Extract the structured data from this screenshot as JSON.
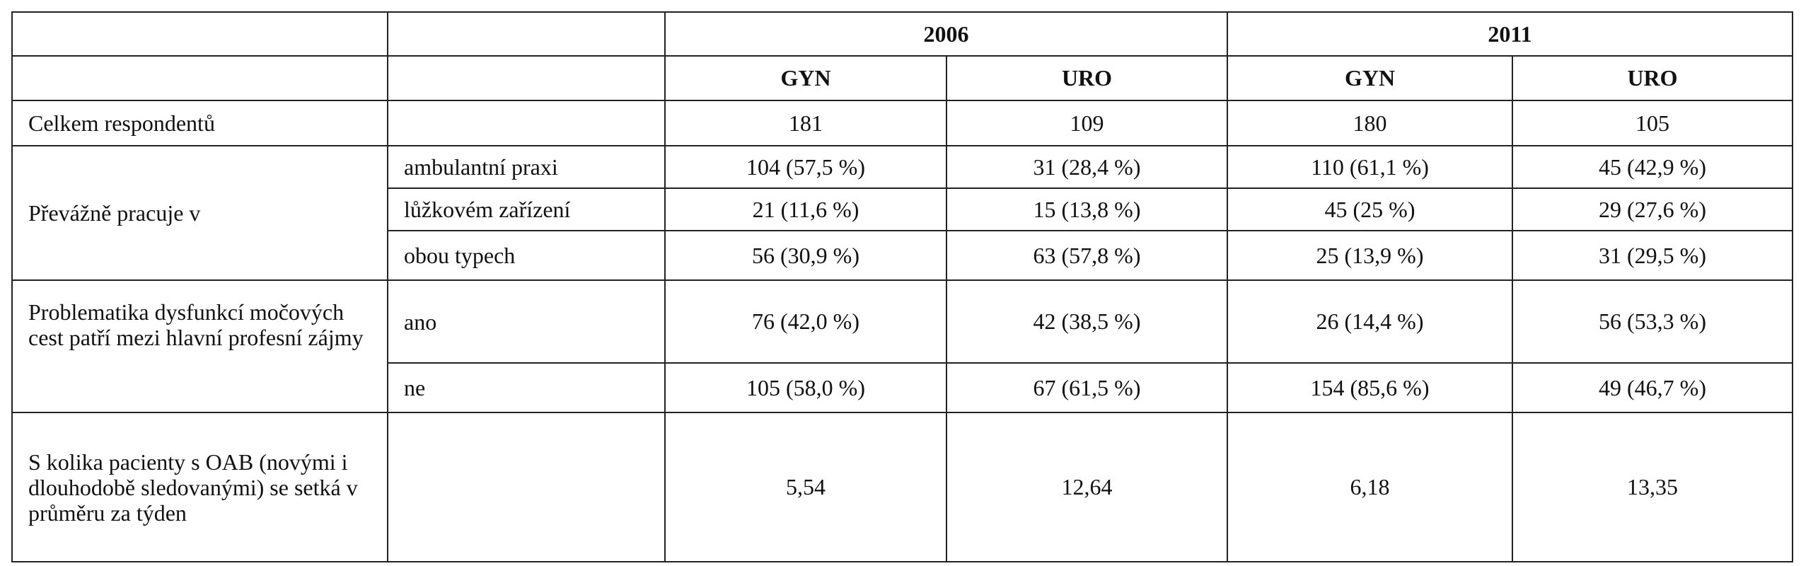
{
  "table": {
    "years": [
      "2006",
      "2011"
    ],
    "groups": [
      "GYN",
      "URO",
      "GYN",
      "URO"
    ],
    "rows": [
      {
        "label": "Celkem respondentů",
        "cells": [
          "181",
          "109",
          "180",
          "105"
        ]
      },
      {
        "label": "Převážně pracuje v",
        "sub": [
          {
            "label": "ambulantní praxi",
            "cells": [
              "104 (57,5 %)",
              "31 (28,4 %)",
              "110 (61,1 %)",
              "45 (42,9 %)"
            ]
          },
          {
            "label": "lůžkovém zařízení",
            "cells": [
              "21 (11,6 %)",
              "15 (13,8 %)",
              "45 (25 %)",
              "29 (27,6 %)"
            ]
          },
          {
            "label": "obou typech",
            "cells": [
              "56 (30,9 %)",
              "63 (57,8 %)",
              "25 (13,9 %)",
              "31 (29,5 %)"
            ]
          }
        ]
      },
      {
        "label": "Problematika dysfunkcí močových cest patří mezi hlavní profesní zájmy",
        "sub": [
          {
            "label": "ano",
            "cells": [
              "76 (42,0 %)",
              "42 (38,5 %)",
              "26 (14,4 %)",
              "56 (53,3 %)"
            ]
          },
          {
            "label": "ne",
            "cells": [
              "105 (58,0 %)",
              "67 (61,5 %)",
              "154 (85,6 %)",
              "49 (46,7 %)"
            ]
          }
        ]
      },
      {
        "label": "S kolika pacienty s OAB (novými i dlouhodobě sledovanými) se setká v průměru za týden",
        "cells": [
          "5,54",
          "12,64",
          "6,18",
          "13,35"
        ]
      }
    ]
  }
}
